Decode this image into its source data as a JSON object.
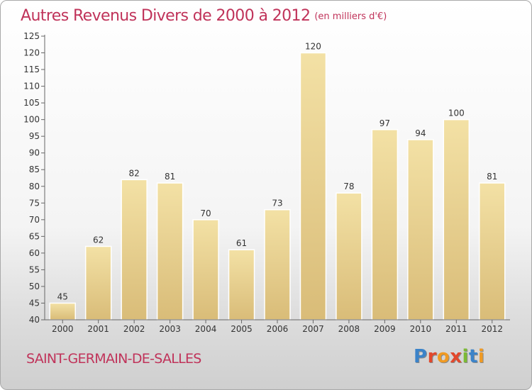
{
  "header": {
    "title": "Autres Revenus Divers de 2000 à 2012",
    "unit": "(en milliers d'€)"
  },
  "footer": {
    "commune": "SAINT-GERMAIN-DE-SALLES",
    "logo_text": "Proxiti"
  },
  "colors": {
    "title": "#c0335a",
    "bar_light": "#f3e1a5",
    "bar_dark": "#d9bc78",
    "bar_outline": "#ffffff"
  },
  "chart_data": {
    "type": "bar",
    "title": "Autres Revenus Divers de 2000 à 2012",
    "xlabel": "",
    "ylabel": "",
    "categories": [
      "2000",
      "2001",
      "2002",
      "2003",
      "2004",
      "2005",
      "2006",
      "2007",
      "2008",
      "2009",
      "2010",
      "2011",
      "2012"
    ],
    "values": [
      45,
      62,
      82,
      81,
      70,
      61,
      73,
      120,
      78,
      97,
      94,
      100,
      81
    ],
    "ylim": [
      40,
      125
    ],
    "yticks": [
      40,
      45,
      50,
      55,
      60,
      65,
      70,
      75,
      80,
      85,
      90,
      95,
      100,
      105,
      110,
      115,
      120,
      125
    ],
    "grid": false,
    "data_labels": true
  }
}
